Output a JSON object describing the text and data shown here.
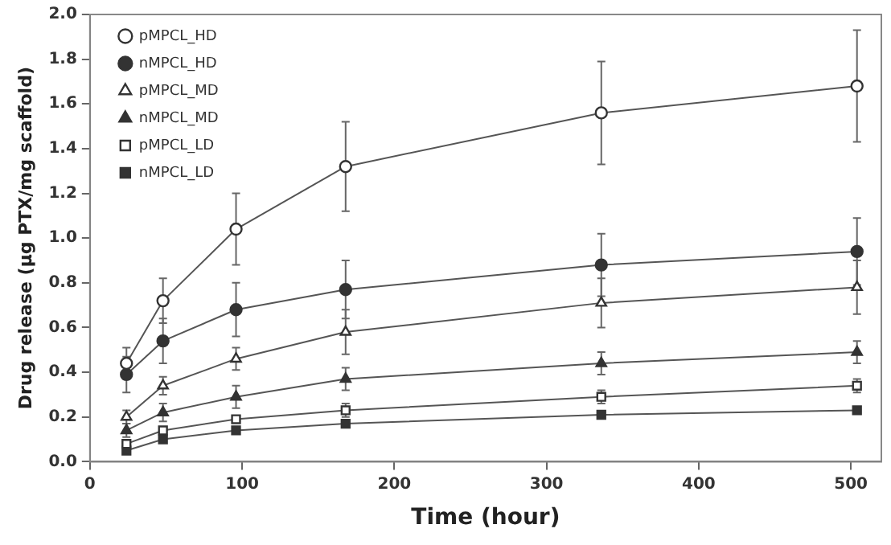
{
  "chart_data": {
    "type": "line",
    "xlabel": "Time (hour)",
    "ylabel": "Drug release (µg PTX/mg scaffold)",
    "x": [
      24,
      48,
      96,
      168,
      336,
      504
    ],
    "xlim": [
      0,
      520
    ],
    "xticks": [
      0,
      100,
      200,
      300,
      400,
      500
    ],
    "ylim": [
      0,
      2
    ],
    "yticks": [
      {
        "value": 0,
        "label": "0.0"
      },
      {
        "value": 0.2,
        "label": "0.2"
      },
      {
        "value": 0.4,
        "label": "0.4"
      },
      {
        "value": 0.6,
        "label": "0.6"
      },
      {
        "value": 0.8,
        "label": "0.8"
      },
      {
        "value": 1,
        "label": "1.0"
      },
      {
        "value": 1.2,
        "label": "1.2"
      },
      {
        "value": 1.4,
        "label": "1.4"
      },
      {
        "value": 1.6,
        "label": "1.6"
      },
      {
        "value": 1.8,
        "label": "1.8"
      },
      {
        "value": 2,
        "label": "2.0"
      }
    ],
    "grid": false,
    "legend": "top left",
    "line_style": "solid",
    "series": [
      {
        "name": "pMPCL_HD",
        "color": "#ffffff",
        "marker": "circle",
        "values": [
          0.44,
          0.72,
          1.04,
          1.32,
          1.56,
          1.68
        ],
        "errors": [
          0.07,
          0.1,
          0.16,
          0.2,
          0.23,
          0.25
        ]
      },
      {
        "name": "nMPCL_HD",
        "color": "#333333",
        "marker": "circle",
        "values": [
          0.39,
          0.54,
          0.68,
          0.77,
          0.88,
          0.94
        ],
        "errors": [
          0.08,
          0.1,
          0.12,
          0.13,
          0.14,
          0.15
        ]
      },
      {
        "name": "pMPCL_MD",
        "color": "#ffffff",
        "marker": "triangle",
        "values": [
          0.2,
          0.34,
          0.46,
          0.58,
          0.71,
          0.78
        ],
        "errors": [
          0.03,
          0.04,
          0.05,
          0.1,
          0.11,
          0.12
        ]
      },
      {
        "name": "nMPCL_MD",
        "color": "#333333",
        "marker": "triangle",
        "values": [
          0.14,
          0.22,
          0.29,
          0.37,
          0.44,
          0.49
        ],
        "errors": [
          0.03,
          0.04,
          0.05,
          0.05,
          0.05,
          0.05
        ]
      },
      {
        "name": "pMPCL_LD",
        "color": "#ffffff",
        "marker": "square",
        "values": [
          0.08,
          0.14,
          0.19,
          0.23,
          0.29,
          0.34
        ],
        "errors": [
          null,
          null,
          null,
          0.03,
          0.03,
          0.03
        ]
      },
      {
        "name": "nMPCL_LD",
        "color": "#333333",
        "marker": "square",
        "values": [
          0.05,
          0.1,
          0.14,
          0.17,
          0.21,
          0.23
        ]
      }
    ]
  }
}
